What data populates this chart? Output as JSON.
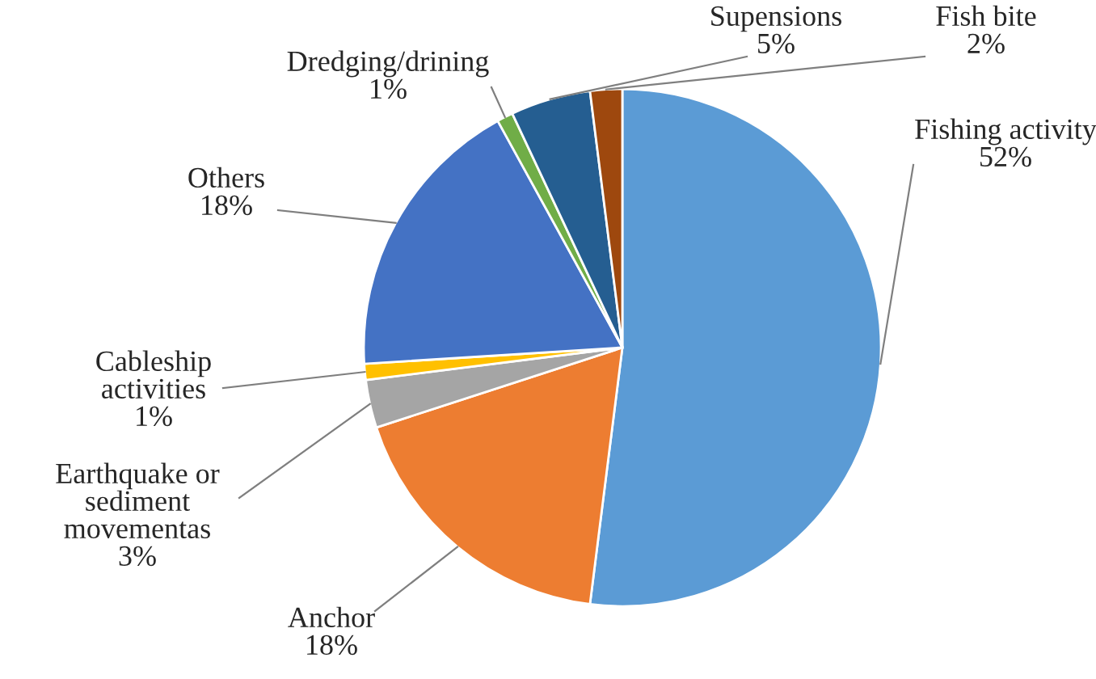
{
  "chart_data": {
    "type": "pie",
    "categories": [
      "Fishing activity",
      "Anchor",
      "Earthquake or\nsediment\nmovementas",
      "Cableship\nactivities",
      "Others",
      "Dredging/drining",
      "Supensions",
      "Fish bite"
    ],
    "values": [
      52,
      18,
      3,
      1,
      18,
      1,
      5,
      2
    ],
    "value_labels": [
      "52%",
      "18%",
      "3%",
      "1%",
      "18%",
      "1%",
      "5%",
      "2%"
    ],
    "colors": [
      "#5b9bd5",
      "#ed7d31",
      "#a5a5a5",
      "#ffc000",
      "#4472c4",
      "#70ad47",
      "#255e91",
      "#9e480e"
    ],
    "legend": false
  }
}
